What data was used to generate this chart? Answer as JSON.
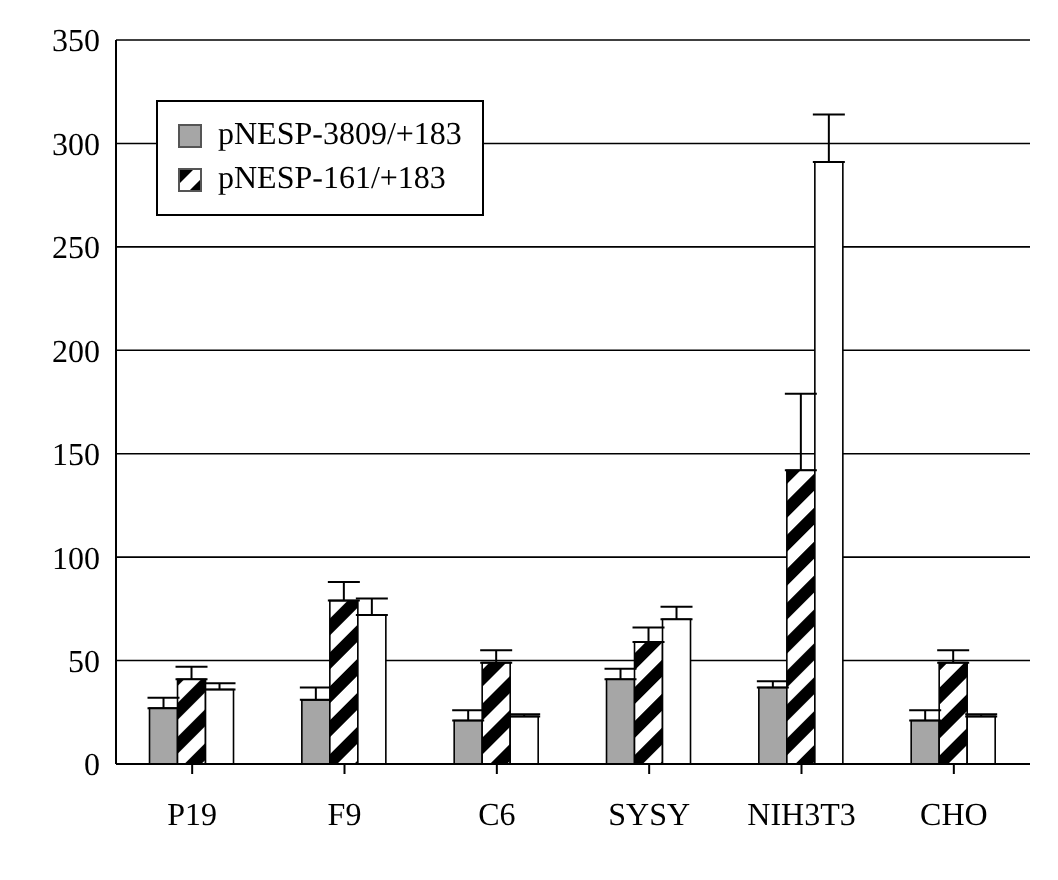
{
  "chart_data": {
    "type": "bar",
    "categories": [
      "P19",
      "F9",
      "C6",
      "SYSY",
      "NIH3T3",
      "CHO"
    ],
    "series": [
      {
        "name": "pNESP-3809/+183",
        "color": "#a6a6a6",
        "values": [
          27,
          31,
          21,
          41,
          37,
          21
        ],
        "errors": [
          [
            27,
            32
          ],
          [
            31,
            37
          ],
          [
            21,
            26
          ],
          [
            41,
            46
          ],
          [
            37,
            40
          ],
          [
            21,
            26
          ]
        ]
      },
      {
        "name": "pNESP-161/+183",
        "color": "#000000",
        "values": [
          41,
          79,
          49,
          59,
          142,
          49
        ],
        "errors": [
          [
            41,
            47
          ],
          [
            79,
            88
          ],
          [
            49,
            55
          ],
          [
            59,
            66
          ],
          [
            142,
            179
          ],
          [
            49,
            55
          ]
        ]
      },
      {
        "color": "#ffffff",
        "values": [
          36,
          72,
          23,
          70,
          291,
          23
        ],
        "errors": [
          [
            36,
            39
          ],
          [
            72,
            80
          ],
          [
            23,
            24
          ],
          [
            70,
            76
          ],
          [
            291,
            314
          ],
          [
            23,
            24
          ]
        ]
      }
    ],
    "ylim": [
      0,
      350
    ],
    "yticks": [
      0,
      50,
      100,
      150,
      200,
      250,
      300,
      350
    ],
    "grid": "y",
    "legend": "top left"
  }
}
